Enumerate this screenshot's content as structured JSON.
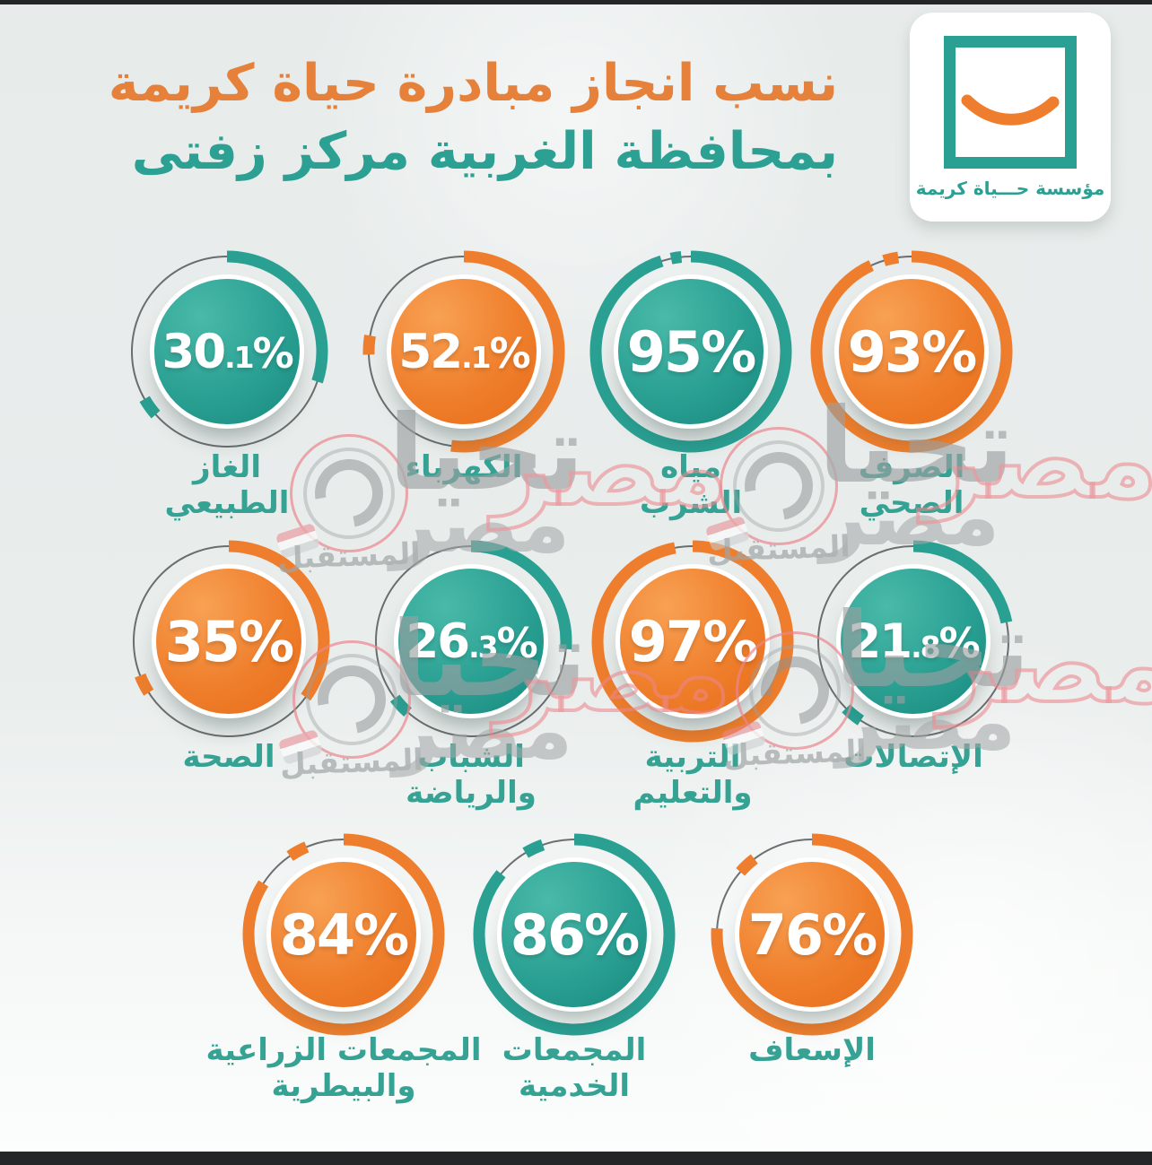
{
  "title": {
    "line1": "نسب انجاز مبادرة حياة كريمة",
    "line2": "بمحافظة الغربية مركز زفتى"
  },
  "logo": {
    "caption": "مؤسسة حـــياة كريمة",
    "symbol": "smile-in-square"
  },
  "watermark": {
    "tahya": "تحيا",
    "misr": "مصر",
    "future": "المستقبل"
  },
  "percent_sign": "%",
  "colors": {
    "teal": "#2aa093",
    "orange": "#ee7e2d",
    "label": "#35a294",
    "title_orange": "#e5813a",
    "title_teal": "#2ba093",
    "wm_pink": "#eb868d",
    "wm_gray": "#9b9fa0",
    "bar": "#232527",
    "background": "#e9edec"
  },
  "items": [
    {
      "name": "natural-gas",
      "row": 1,
      "col": 0,
      "value": 30.1,
      "main": "30",
      "dec": ".1",
      "color": "teal",
      "label": [
        "الغاز",
        "الطبيعي"
      ]
    },
    {
      "name": "electricity",
      "row": 1,
      "col": 1,
      "value": 52.1,
      "main": "52",
      "dec": ".1",
      "color": "orange",
      "label": [
        "الكهرباء"
      ]
    },
    {
      "name": "drinking-water",
      "row": 1,
      "col": 2,
      "value": 95,
      "main": "95",
      "dec": "",
      "color": "teal",
      "label": [
        "مياه",
        "الشرب"
      ]
    },
    {
      "name": "sanitation",
      "row": 1,
      "col": 3,
      "value": 93,
      "main": "93",
      "dec": "",
      "color": "orange",
      "label": [
        "الصرف",
        "الصحي"
      ]
    },
    {
      "name": "health",
      "row": 2,
      "col": 0,
      "value": 35,
      "main": "35",
      "dec": "",
      "color": "orange",
      "label": [
        "الصحة"
      ]
    },
    {
      "name": "youth-and-sports",
      "row": 2,
      "col": 1,
      "value": 26.3,
      "main": "26",
      "dec": ".3",
      "color": "teal",
      "label": [
        "الشباب",
        "والرياضة"
      ]
    },
    {
      "name": "education",
      "row": 2,
      "col": 2,
      "value": 97,
      "main": "97",
      "dec": "",
      "color": "orange",
      "label": [
        "التربية",
        "والتعليم"
      ]
    },
    {
      "name": "communications",
      "row": 2,
      "col": 3,
      "value": 21.8,
      "main": "21",
      "dec": ".8",
      "color": "teal",
      "label": [
        "الإتصالات"
      ]
    },
    {
      "name": "agricultural-veterinary-complexes",
      "row": 3,
      "col": 0,
      "value": 84,
      "main": "84",
      "dec": "",
      "color": "orange",
      "label": [
        "المجمعات الزراعية",
        "والبيطرية"
      ]
    },
    {
      "name": "service-complexes",
      "row": 3,
      "col": 1,
      "value": 86,
      "main": "86",
      "dec": "",
      "color": "teal",
      "label": [
        "المجمعات",
        "الخدمية"
      ]
    },
    {
      "name": "ambulance",
      "row": 3,
      "col": 2,
      "value": 76,
      "main": "76",
      "dec": "",
      "color": "orange",
      "label": [
        "الإسعاف"
      ]
    }
  ],
  "chart_data": {
    "type": "pie",
    "subtype": "progress-donuts",
    "title": "نسب انجاز مبادرة حياة كريمة بمحافظة الغربية مركز زفتى",
    "unit": "%",
    "categories": [
      "الغاز الطبيعي",
      "الكهرباء",
      "مياه الشرب",
      "الصرف الصحي",
      "الصحة",
      "الشباب والرياضة",
      "التربية والتعليم",
      "الإتصالات",
      "المجمعات الزراعية والبيطرية",
      "المجمعات الخدمية",
      "الإسعاف"
    ],
    "values": [
      30.1,
      52.1,
      95,
      93,
      35,
      26.3,
      97,
      21.8,
      84,
      86,
      76
    ],
    "series_colors": [
      "teal",
      "orange",
      "teal",
      "orange",
      "orange",
      "teal",
      "orange",
      "teal",
      "orange",
      "teal",
      "orange"
    ]
  }
}
